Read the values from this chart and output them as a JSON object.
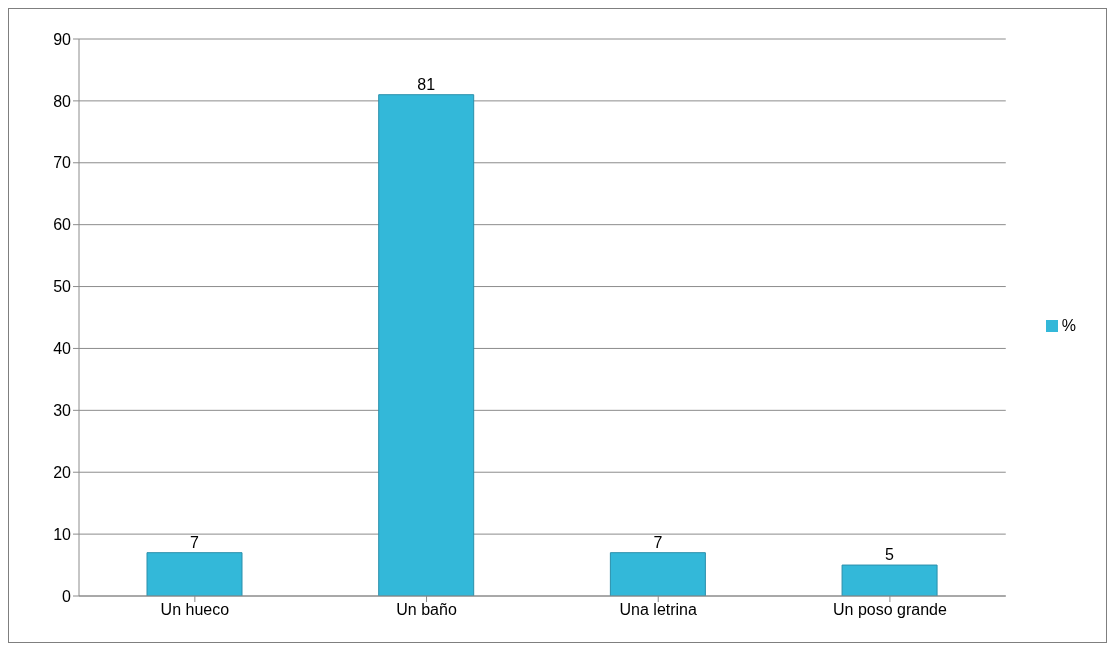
{
  "chart_data": {
    "type": "bar",
    "categories": [
      "Un hueco",
      "Un baño",
      "Una letrina",
      "Un poso grande"
    ],
    "series": [
      {
        "name": "%",
        "color": "#33b8d9",
        "values": [
          7,
          81,
          7,
          5
        ]
      }
    ],
    "ylim": [
      0,
      90
    ],
    "yticks": [
      0,
      10,
      20,
      30,
      40,
      50,
      60,
      70,
      80,
      90
    ],
    "grid": "y",
    "legend": "right",
    "data_labels": true
  }
}
